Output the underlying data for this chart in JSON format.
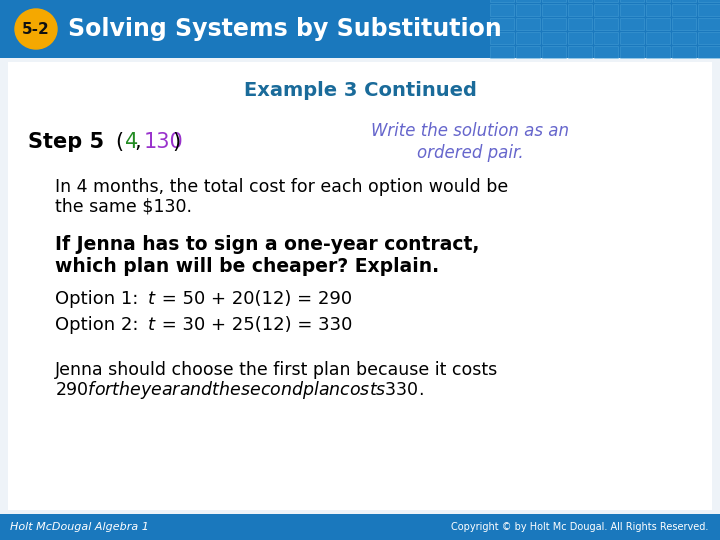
{
  "header_bg_color": "#1a78bd",
  "header_text": "Solving Systems by Substitution",
  "header_badge_color": "#f5a800",
  "header_badge_text": "5-2",
  "header_text_color": "#ffffff",
  "body_bg_color": "#f0f4f8",
  "example_title": "Example 3 Continued",
  "example_title_color": "#1a6b9a",
  "step5_label": "Step 5",
  "step5_label_color": "#000000",
  "ordered_pair_4_color": "#228B22",
  "ordered_pair_130_color": "#9932CC",
  "write_text_line1": "Write the solution as an",
  "write_text_line2": "ordered pair.",
  "write_text_color": "#6666cc",
  "body_text1_line1": "In 4 months, the total cost for each option would be",
  "body_text1_line2": "the same $130.",
  "bold_question_line1": "If Jenna has to sign a one-year contract,",
  "bold_question_line2": "which plan will be cheaper? Explain.",
  "option1_prefix": "Option 1: ",
  "option1_rest": " = 50 + 20(12) = 290",
  "option2_prefix": "Option 2: ",
  "option2_rest": " = 30 + 25(12) = 330",
  "conclusion_line1": "Jenna should choose the first plan because it costs",
  "conclusion_line2": "$290 for the year and the second plan costs $330.",
  "footer_bg_color": "#1a78bd",
  "footer_left": "Holt McDougal Algebra 1",
  "footer_right": "Copyright © by Holt Mc Dougal. All Rights Reserved.",
  "footer_text_color": "#ffffff",
  "grid_color": "#3a9ad4"
}
